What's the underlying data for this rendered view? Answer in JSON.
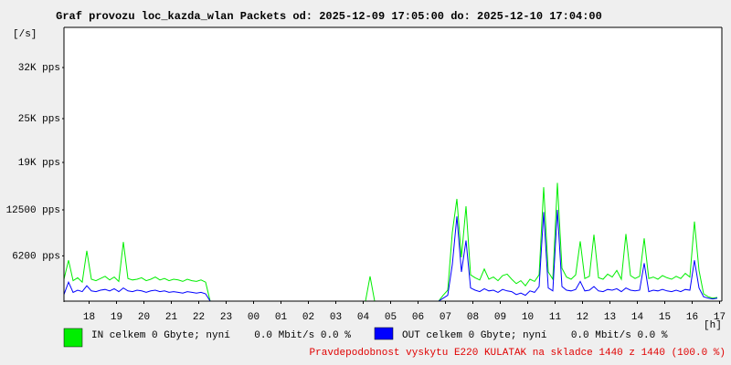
{
  "chart_data": {
    "type": "line",
    "title": "Graf provozu loc_kazda_wlan Packets od: 2025-12-09 17:05:00 do: 2025-12-10 17:04:00",
    "y_unit": "[/s]",
    "x_unit": "[h]",
    "x_labels": [
      "18",
      "19",
      "20",
      "21",
      "22",
      "23",
      "00",
      "01",
      "02",
      "03",
      "04",
      "05",
      "06",
      "07",
      "08",
      "09",
      "10",
      "11",
      "12",
      "13",
      "14",
      "15",
      "16",
      "17"
    ],
    "ylim": [
      0,
      37500
    ],
    "yticks": [
      {
        "value": 6200,
        "label": "6200 pps"
      },
      {
        "value": 12500,
        "label": "12500 pps"
      },
      {
        "value": 19000,
        "label": "19K pps"
      },
      {
        "value": 25000,
        "label": "25K pps"
      },
      {
        "value": 32000,
        "label": "32K pps"
      }
    ],
    "series": [
      {
        "name": "IN celkem 0 Gbyte; nyní    0.0 Mbit/s 0.0 %",
        "color": "#00ee00",
        "values": [
          3000,
          5600,
          2800,
          3200,
          2600,
          6900,
          3000,
          2800,
          3100,
          3400,
          2900,
          3300,
          2700,
          8100,
          3100,
          2900,
          3000,
          3200,
          2800,
          3000,
          3300,
          2900,
          3100,
          2800,
          3000,
          2900,
          2700,
          3000,
          2800,
          2700,
          2900,
          2600,
          0,
          0,
          0,
          0,
          0,
          0,
          0,
          0,
          0,
          0,
          0,
          0,
          0,
          0,
          0,
          0,
          0,
          0,
          0,
          0,
          0,
          0,
          0,
          0,
          0,
          0,
          0,
          0,
          0,
          0,
          0,
          0,
          0,
          0,
          0,
          3400,
          0,
          0,
          0,
          0,
          0,
          0,
          0,
          0,
          0,
          0,
          0,
          0,
          0,
          0,
          0,
          800,
          1500,
          9400,
          14000,
          6000,
          13000,
          3600,
          3200,
          2900,
          4400,
          3000,
          3300,
          2800,
          3500,
          3700,
          3000,
          2400,
          2800,
          2100,
          3000,
          2700,
          3600,
          15600,
          4000,
          3000,
          16200,
          4500,
          3300,
          3000,
          3600,
          8200,
          3100,
          3400,
          9100,
          3200,
          3000,
          3700,
          3300,
          4200,
          3000,
          9200,
          3500,
          3100,
          3400,
          8600,
          3100,
          3300,
          3000,
          3500,
          3200,
          3000,
          3400,
          3100,
          3800,
          3300,
          10900,
          4200,
          1000,
          600,
          400,
          500
        ]
      },
      {
        "name": "OUT celkem 0 Gbyte; nyní    0.0 Mbit/s 0.0 %",
        "color": "#0000ff",
        "values": [
          900,
          2600,
          1200,
          1500,
          1300,
          2100,
          1400,
          1300,
          1500,
          1600,
          1400,
          1700,
          1300,
          1800,
          1400,
          1300,
          1500,
          1400,
          1200,
          1400,
          1500,
          1300,
          1400,
          1200,
          1300,
          1200,
          1100,
          1300,
          1200,
          1100,
          1200,
          1000,
          0,
          0,
          0,
          0,
          0,
          0,
          0,
          0,
          0,
          0,
          0,
          0,
          0,
          0,
          0,
          0,
          0,
          0,
          0,
          0,
          0,
          0,
          0,
          0,
          0,
          0,
          0,
          0,
          0,
          0,
          0,
          0,
          0,
          0,
          0,
          0,
          0,
          0,
          0,
          0,
          0,
          0,
          0,
          0,
          0,
          0,
          0,
          0,
          0,
          0,
          0,
          400,
          800,
          5000,
          11600,
          4000,
          8300,
          1800,
          1500,
          1300,
          1700,
          1400,
          1500,
          1200,
          1600,
          1400,
          1300,
          900,
          1100,
          800,
          1400,
          1200,
          2000,
          12200,
          1800,
          1400,
          12500,
          2000,
          1500,
          1400,
          1600,
          2700,
          1400,
          1500,
          2000,
          1400,
          1300,
          1600,
          1500,
          1700,
          1300,
          1800,
          1500,
          1400,
          1500,
          5200,
          1300,
          1500,
          1400,
          1600,
          1400,
          1300,
          1500,
          1300,
          1600,
          1500,
          5600,
          1800,
          600,
          400,
          300,
          400
        ]
      }
    ],
    "note": "Pravdepodobnost vyskytu E220 KULATAK na skladce 1440 z 1440 (100.0 %)"
  }
}
